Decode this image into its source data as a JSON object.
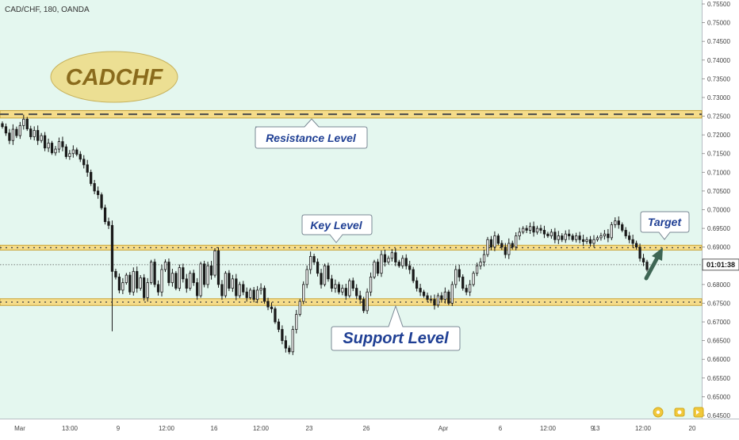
{
  "header": {
    "symbol_line": "CAD/CHF, 180, OANDA"
  },
  "logo": {
    "text": "CADCHF"
  },
  "price_tag": {
    "text": "01:01:38"
  },
  "callouts": {
    "resistance": "Resistance Level",
    "key": "Key Level",
    "support": "Support Level",
    "target": "Target"
  },
  "colors": {
    "background": "#e4f7ef",
    "candle": "#1a1a1a",
    "zone_fill": "#f5dc8a",
    "zone_border": "#c9a53a",
    "callout_text": "#1f3f94",
    "arrow": "#3e6654",
    "logo_fill": "#ecdf93",
    "logo_text": "#8a6b1c"
  },
  "toolbar_icons": [
    "gear-icon",
    "camera-icon",
    "fast-forward-icon"
  ],
  "chart_data": {
    "type": "candlestick",
    "instrument": "CAD/CHF",
    "timeframe": "180",
    "source": "OANDA",
    "y_axis": {
      "ticks": [
        "0.75500",
        "0.75000",
        "0.74500",
        "0.74000",
        "0.73500",
        "0.73000",
        "0.72500",
        "0.72000",
        "0.71500",
        "0.71000",
        "0.70500",
        "0.70000",
        "0.69500",
        "0.69000",
        "0.68500",
        "0.68000",
        "0.67500",
        "0.67000",
        "0.66500",
        "0.66000",
        "0.65500",
        "0.65000",
        "0.64500"
      ],
      "ylim": [
        0.645,
        0.755
      ]
    },
    "x_axis": {
      "ticks": [
        "Mar",
        "13:00",
        "9",
        "12:00",
        "16",
        "12:00",
        "23",
        "26",
        "Apr",
        "6",
        "12:00",
        "9",
        "13",
        "12:00",
        "20"
      ]
    },
    "levels": [
      {
        "name": "Resistance Level",
        "low": 0.7245,
        "high": 0.7265
      },
      {
        "name": "Key Level",
        "low": 0.6892,
        "high": 0.6905
      },
      {
        "name": "Support Level",
        "low": 0.6744,
        "high": 0.6762
      }
    ],
    "current_price": 0.6853,
    "closes": [
      0.7222,
      0.7205,
      0.7185,
      0.7215,
      0.7198,
      0.7225,
      0.7242,
      0.7216,
      0.7195,
      0.7212,
      0.7185,
      0.7198,
      0.7165,
      0.7178,
      0.7152,
      0.7162,
      0.7182,
      0.7168,
      0.7142,
      0.715,
      0.716,
      0.7148,
      0.7135,
      0.712,
      0.71,
      0.707,
      0.705,
      0.704,
      0.7005,
      0.6968,
      0.6958,
      0.6835,
      0.682,
      0.6785,
      0.6805,
      0.6825,
      0.678,
      0.6835,
      0.679,
      0.6818,
      0.6765,
      0.6805,
      0.686,
      0.68,
      0.678,
      0.684,
      0.686,
      0.6805,
      0.683,
      0.679,
      0.6845,
      0.6815,
      0.679,
      0.683,
      0.6805,
      0.677,
      0.6855,
      0.68,
      0.685,
      0.6825,
      0.689,
      0.68,
      0.677,
      0.683,
      0.679,
      0.6815,
      0.677,
      0.68,
      0.678,
      0.6765,
      0.6785,
      0.676,
      0.6785,
      0.679,
      0.6755,
      0.674,
      0.6735,
      0.67,
      0.668,
      0.665,
      0.663,
      0.662,
      0.668,
      0.672,
      0.6755,
      0.68,
      0.684,
      0.6875,
      0.686,
      0.683,
      0.68,
      0.685,
      0.6815,
      0.679,
      0.68,
      0.678,
      0.679,
      0.677,
      0.681,
      0.679,
      0.677,
      0.676,
      0.673,
      0.678,
      0.682,
      0.686,
      0.683,
      0.688,
      0.686,
      0.687,
      0.6885,
      0.686,
      0.685,
      0.687,
      0.685,
      0.684,
      0.681,
      0.679,
      0.678,
      0.677,
      0.676,
      0.676,
      0.6745,
      0.677,
      0.676,
      0.678,
      0.675,
      0.68,
      0.684,
      0.682,
      0.679,
      0.678,
      0.68,
      0.683,
      0.685,
      0.686,
      0.688,
      0.692,
      0.69,
      0.693,
      0.691,
      0.69,
      0.688,
      0.691,
      0.69,
      0.693,
      0.694,
      0.695,
      0.6945,
      0.6955,
      0.694,
      0.695,
      0.6945,
      0.6935,
      0.693,
      0.694,
      0.692,
      0.693,
      0.692,
      0.6935,
      0.693,
      0.692,
      0.693,
      0.692,
      0.6915,
      0.692,
      0.691,
      0.692,
      0.6925,
      0.693,
      0.6935,
      0.6925,
      0.696,
      0.697,
      0.696,
      0.6945,
      0.693,
      0.692,
      0.691,
      0.69,
      0.687,
      0.686,
      0.684
    ]
  }
}
